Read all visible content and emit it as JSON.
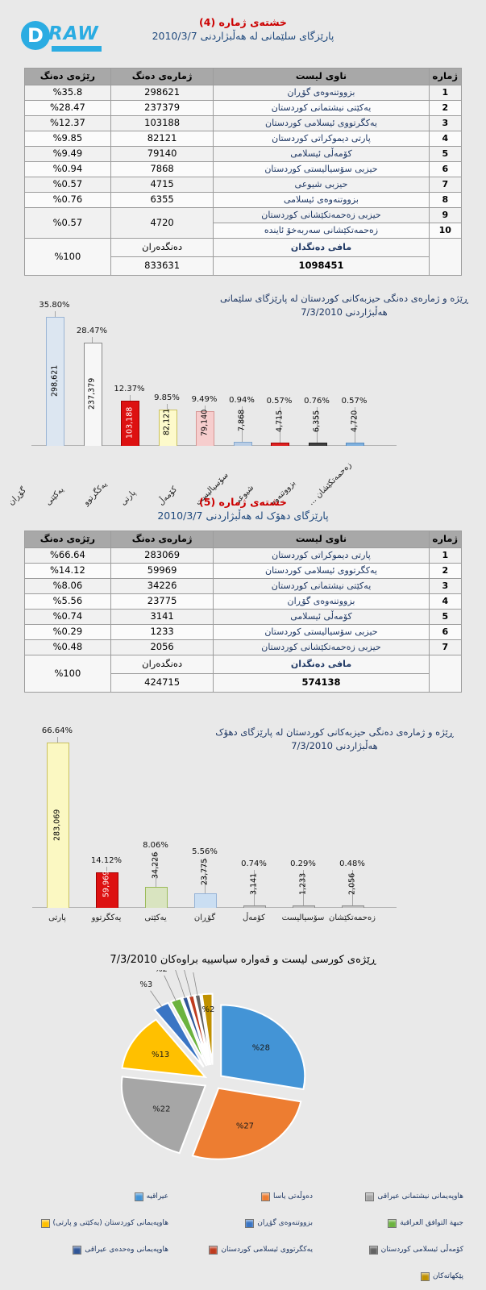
{
  "logo": {
    "circle_letter": "D",
    "brand": "RAW"
  },
  "chart_data": [
    {
      "type": "table",
      "id": "table-sulaymaniyah",
      "title": "خشتەی ژمارە (4)",
      "subtitle": "پارێزگای سلێمانی لە هەڵبژاردنی 2010/3/7",
      "headers": [
        "ژمارە",
        "ناوی لیست",
        "ژمارەی دەنگ",
        "رێژەی دەنگ"
      ],
      "rows": [
        [
          "1",
          "بزووتنەوەی گۆڕان",
          "298621",
          "%35.8"
        ],
        [
          "2",
          "یەکێتی نیشتمانی کوردستان",
          "237379",
          "%28.47"
        ],
        [
          "3",
          "یەکگرتووی ئیسلامی کوردستان",
          "103188",
          "%12.37"
        ],
        [
          "4",
          "پارتی دیموکراتی کوردستان",
          "82121",
          "%9.85"
        ],
        [
          "5",
          "کۆمەڵی ئیسلامی",
          "79140",
          "%9.49"
        ],
        [
          "6",
          "حیزبی سۆسیالیستی کوردستان",
          "7868",
          "%0.94"
        ],
        [
          "7",
          "حیزبی شیوعی",
          "4715",
          "%0.57"
        ],
        [
          "8",
          "بزووتنەوەی ئیسلامی",
          "6355",
          "%0.76"
        ]
      ],
      "merged": {
        "row_a": [
          "9",
          "حیزبی زەحمەتکێشانی کوردستان"
        ],
        "row_b": [
          "10",
          "زەحمەتکێشانی سەربەخۆ   ئایندە"
        ],
        "votes": "4720",
        "pct": "%0.57"
      },
      "footer": {
        "name": "مافی دەنگدان",
        "total": "1098451",
        "voters_label": "دەنگدەران",
        "voters": "833631",
        "pct": "%100"
      }
    },
    {
      "type": "bar",
      "id": "votes-bar-chart-sulaymaniyah",
      "title_line1": "ڕێژە و ژمارەی دەنگی حیزبەکانی کوردستان لە پارێزگای سلێمانی",
      "title_line2": "هەڵبژاردنی 7/3/2010",
      "categories": [
        "گۆڕان",
        "یەکێتی",
        "یەکگرتوو",
        "پارتی",
        "کۆمەڵ",
        "سۆسیالیست",
        "شیوعی",
        "بزووتنەوە",
        "زەحمەتکێشان ..."
      ],
      "values": [
        298621,
        237379,
        103188,
        82121,
        79140,
        7868,
        4715,
        6355,
        4720
      ],
      "value_labels": [
        "298,621",
        "237,379",
        "103,188",
        "82,121",
        "79,140",
        "7,868",
        "4,715",
        "6,355",
        "4,720"
      ],
      "percent_labels": [
        "35.80%",
        "28.47%",
        "12.37%",
        "9.85%",
        "9.49%",
        "0.94%",
        "0.57%",
        "0.76%",
        "0.57%"
      ],
      "colors": [
        "#dce6f1",
        "#f7f7f7",
        "#dd1111",
        "#fdfacb",
        "#f6cdcd",
        "#b9cde5",
        "#dd2222",
        "#404040",
        "#7fb0dd"
      ],
      "borders": [
        "#9ab4d4",
        "#8a8a8a",
        "#a00000",
        "#c9c05e",
        "#d79694",
        "#85a9cf",
        "#a00000",
        "#222222",
        "#5b8ec0"
      ],
      "text_colors": [
        "#000",
        "#000",
        "#fff",
        "#000",
        "#000",
        "#000",
        "#000",
        "#000",
        "#000"
      ],
      "ylim": [
        0,
        300000
      ],
      "grid": false,
      "category_label_rotation": -45
    },
    {
      "type": "table",
      "id": "table-duhok",
      "title": "خشتەی ژمارە (5)",
      "subtitle": "پارێزگای دهۆک لە هەڵبژاردنی 2010/3/7",
      "headers": [
        "ژمارە",
        "ناوی لیست",
        "ژمارەی دەنگ",
        "رێژەی دەنگ"
      ],
      "rows": [
        [
          "1",
          "پارتی دیموکراتی کوردستان",
          "283069",
          "%66.64"
        ],
        [
          "2",
          "یەکگرتووی ئیسلامی کوردستان",
          "59969",
          "%14.12"
        ],
        [
          "3",
          "یەکێتی نیشتمانی کوردستان",
          "34226",
          "%8.06"
        ],
        [
          "4",
          "بزووتنەوەی گۆڕان",
          "23775",
          "%5.56"
        ],
        [
          "5",
          "کۆمەڵی ئیسلامی",
          "3141",
          "%0.74"
        ],
        [
          "6",
          "حیزبی سۆسیالیستی کوردستان",
          "1233",
          "%0.29"
        ],
        [
          "7",
          "حیزبی زەحمەتکێشانی کوردستان",
          "2056",
          "%0.48"
        ]
      ],
      "footer": {
        "name": "مافی دەنگدان",
        "total": "574138",
        "voters_label": "دەنگدەران",
        "voters": "424715",
        "pct": "%100"
      }
    },
    {
      "type": "bar",
      "id": "votes-bar-chart-duhok",
      "title_line1": "ڕێژە و ژمارەی دەنگی حیزبەکانی کوردستان لە پارێزگای دهۆک",
      "title_line2": "هەڵبژاردنی 7/3/2010",
      "categories": [
        "پارتی",
        "یەکگرتوو",
        "یەکێتی",
        "گۆڕان",
        "کۆمەڵ",
        "سۆسیالیست",
        "زەحمەتکێشان"
      ],
      "values": [
        283069,
        59969,
        34226,
        23775,
        3141,
        1233,
        2056
      ],
      "value_labels": [
        "283,069",
        "59,969",
        "34,226",
        "23,775",
        "3,141",
        "1,233",
        "2,056"
      ],
      "percent_labels": [
        "66.64%",
        "14.12%",
        "8.06%",
        "5.56%",
        "0.74%",
        "0.29%",
        "0.48%"
      ],
      "colors": [
        "#fbf8c2",
        "#dd1111",
        "#d9e4c0",
        "#cadef2",
        "#c0c0c0",
        "#c0c0c0",
        "#c0c0c0"
      ],
      "borders": [
        "#c9c05e",
        "#a00000",
        "#9bbb59",
        "#95b3d7",
        "#909090",
        "#909090",
        "#909090"
      ],
      "text_colors": [
        "#000",
        "#fff",
        "#000",
        "#000",
        "#000",
        "#000",
        "#000"
      ],
      "ylim": [
        0,
        285000
      ],
      "grid": false,
      "category_label_rotation": 0
    },
    {
      "type": "pie",
      "id": "seats-pie-chart",
      "title": "ڕێژەی کورسی لیست و قەوارە سیاسییە براوەکان 7/3/2010",
      "slices": [
        {
          "label": "عیراقیە",
          "value": 28,
          "display": "%28",
          "color": "#4394d6"
        },
        {
          "label": "دەوڵەتی یاسا",
          "value": 27,
          "display": "%27",
          "color": "#ed7d31"
        },
        {
          "label": "هاوپەیمانی نیشتمانی عیراقی",
          "value": 22,
          "display": "%22",
          "color": "#a6a6a6"
        },
        {
          "label": "هاوپەیمانی کوردستان (یەکێتی و پارتی)",
          "value": 13,
          "display": "%13",
          "color": "#ffc000"
        },
        {
          "label": "بزووتنەوەی گۆڕان",
          "value": 3,
          "display": "%3",
          "color": "#3a75c4"
        },
        {
          "label": "جبهة التوافق العراقية",
          "value": 2,
          "display": "%2",
          "color": "#6cb33f"
        },
        {
          "label": "هاوپەیمانی وەحدەی عیراقی",
          "value": 1,
          "display": "%1",
          "color": "#2f5597"
        },
        {
          "label": "یەکگرتووی ئیسلامی کوردستان",
          "value": 1,
          "display": "%1",
          "color": "#bf3b1e"
        },
        {
          "label": "کۆمەڵی ئیسلامی کوردستان",
          "value": 1,
          "display": "%1",
          "color": "#636363"
        },
        {
          "label": "پێکهاتەکان",
          "value": 2,
          "display": "%2",
          "color": "#c09100"
        }
      ],
      "legend_order": [
        2,
        1,
        0,
        5,
        4,
        3,
        8,
        7,
        6,
        9
      ],
      "legend_position": "bottom"
    }
  ]
}
